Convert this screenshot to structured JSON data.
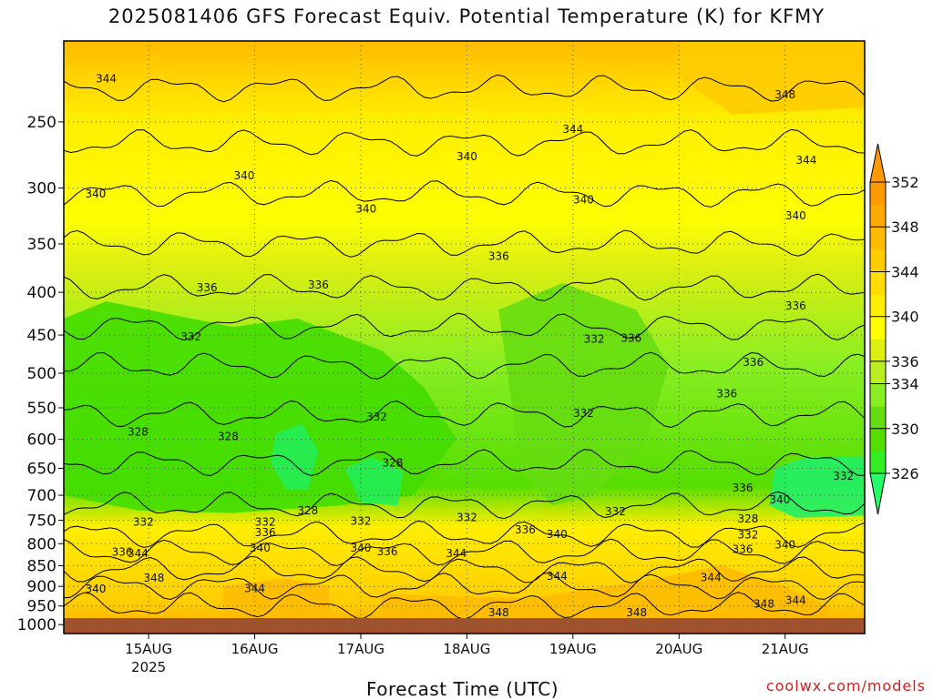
{
  "title": "2025081406 GFS Forecast Equiv. Potential Temperature (K) for KFMY",
  "xlabel": "Forecast Time (UTC)",
  "credit": "coolwx.com/models",
  "colors": {
    "ground": "#a0522d",
    "grid": "#555555",
    "contour": "#000000"
  },
  "chart_data": {
    "type": "heatmap",
    "title": "2025081406 GFS Forecast Equiv. Potential Temperature (K) for KFMY",
    "xlabel": "Forecast Time (UTC)",
    "ylabel": "",
    "y_scale": "log-pressure",
    "y_ticks": [
      250,
      300,
      350,
      400,
      450,
      500,
      550,
      600,
      650,
      700,
      750,
      800,
      850,
      900,
      950,
      1000
    ],
    "y_range_hPa": [
      200,
      1025
    ],
    "x_range_day": [
      14.2,
      21.75
    ],
    "x_ticks": [
      {
        "day": 15,
        "label": "15AUG",
        "sub": "2025"
      },
      {
        "day": 16,
        "label": "16AUG",
        "sub": ""
      },
      {
        "day": 17,
        "label": "17AUG",
        "sub": ""
      },
      {
        "day": 18,
        "label": "18AUG",
        "sub": ""
      },
      {
        "day": 19,
        "label": "19AUG",
        "sub": ""
      },
      {
        "day": 20,
        "label": "20AUG",
        "sub": ""
      },
      {
        "day": 21,
        "label": "21AUG",
        "sub": ""
      }
    ],
    "colorbar": {
      "levels": [
        326,
        328,
        330,
        332,
        334,
        336,
        338,
        340,
        342,
        344,
        346,
        348,
        350,
        352
      ],
      "labels": [
        326,
        330,
        334,
        336,
        340,
        344,
        348,
        352
      ],
      "colors": [
        "#22ff66",
        "#33ee22",
        "#55dd00",
        "#66dd11",
        "#88ee22",
        "#bbee22",
        "#ddee11",
        "#ffff00",
        "#ffee00",
        "#ffdd00",
        "#ffcc00",
        "#ffbb00",
        "#ffaa00",
        "#ff9900"
      ]
    },
    "contour_labels": [
      {
        "day": 14.6,
        "hPa": 222,
        "value": "344"
      },
      {
        "day": 14.5,
        "hPa": 305,
        "value": "340"
      },
      {
        "day": 15.9,
        "hPa": 290,
        "value": "340"
      },
      {
        "day": 17.05,
        "hPa": 318,
        "value": "340"
      },
      {
        "day": 18.0,
        "hPa": 275,
        "value": "340"
      },
      {
        "day": 19.0,
        "hPa": 255,
        "value": "344"
      },
      {
        "day": 19.1,
        "hPa": 310,
        "value": "340"
      },
      {
        "day": 21.0,
        "hPa": 232,
        "value": "348"
      },
      {
        "day": 21.2,
        "hPa": 278,
        "value": "344"
      },
      {
        "day": 21.1,
        "hPa": 324,
        "value": "340"
      },
      {
        "day": 15.55,
        "hPa": 395,
        "value": "336"
      },
      {
        "day": 16.6,
        "hPa": 392,
        "value": "336"
      },
      {
        "day": 18.3,
        "hPa": 362,
        "value": "336"
      },
      {
        "day": 19.55,
        "hPa": 454,
        "value": "336"
      },
      {
        "day": 21.1,
        "hPa": 415,
        "value": "336"
      },
      {
        "day": 20.7,
        "hPa": 485,
        "value": "336"
      },
      {
        "day": 20.45,
        "hPa": 529,
        "value": "336"
      },
      {
        "day": 15.4,
        "hPa": 452,
        "value": "332"
      },
      {
        "day": 19.2,
        "hPa": 455,
        "value": "332"
      },
      {
        "day": 19.1,
        "hPa": 558,
        "value": "332"
      },
      {
        "day": 17.15,
        "hPa": 564,
        "value": "332"
      },
      {
        "day": 14.9,
        "hPa": 588,
        "value": "328"
      },
      {
        "day": 15.75,
        "hPa": 595,
        "value": "328"
      },
      {
        "day": 17.3,
        "hPa": 640,
        "value": "328"
      },
      {
        "day": 16.5,
        "hPa": 730,
        "value": "328"
      },
      {
        "day": 14.95,
        "hPa": 754,
        "value": "332"
      },
      {
        "day": 16.1,
        "hPa": 754,
        "value": "332"
      },
      {
        "day": 17.0,
        "hPa": 752,
        "value": "332"
      },
      {
        "day": 18.0,
        "hPa": 744,
        "value": "332"
      },
      {
        "day": 19.4,
        "hPa": 732,
        "value": "332"
      },
      {
        "day": 20.6,
        "hPa": 686,
        "value": "336"
      },
      {
        "day": 20.95,
        "hPa": 709,
        "value": "340"
      },
      {
        "day": 21.55,
        "hPa": 664,
        "value": "332"
      },
      {
        "day": 20.65,
        "hPa": 747,
        "value": "328"
      },
      {
        "day": 20.65,
        "hPa": 781,
        "value": "332"
      },
      {
        "day": 16.1,
        "hPa": 776,
        "value": "336"
      },
      {
        "day": 18.55,
        "hPa": 770,
        "value": "336"
      },
      {
        "day": 18.85,
        "hPa": 780,
        "value": "340"
      },
      {
        "day": 16.05,
        "hPa": 810,
        "value": "340"
      },
      {
        "day": 17.0,
        "hPa": 810,
        "value": "340"
      },
      {
        "day": 17.25,
        "hPa": 818,
        "value": "336"
      },
      {
        "day": 20.6,
        "hPa": 813,
        "value": "336"
      },
      {
        "day": 21.0,
        "hPa": 802,
        "value": "340"
      },
      {
        "day": 14.75,
        "hPa": 819,
        "value": "336"
      },
      {
        "day": 14.9,
        "hPa": 822,
        "value": "344"
      },
      {
        "day": 17.9,
        "hPa": 822,
        "value": "344"
      },
      {
        "day": 14.5,
        "hPa": 906,
        "value": "340"
      },
      {
        "day": 15.05,
        "hPa": 880,
        "value": "348"
      },
      {
        "day": 16.0,
        "hPa": 905,
        "value": "344"
      },
      {
        "day": 18.85,
        "hPa": 875,
        "value": "344"
      },
      {
        "day": 20.3,
        "hPa": 878,
        "value": "344"
      },
      {
        "day": 20.8,
        "hPa": 945,
        "value": "348"
      },
      {
        "day": 21.1,
        "hPa": 935,
        "value": "344"
      },
      {
        "day": 18.3,
        "hPa": 968,
        "value": "348"
      },
      {
        "day": 19.6,
        "hPa": 968,
        "value": "348"
      }
    ]
  }
}
